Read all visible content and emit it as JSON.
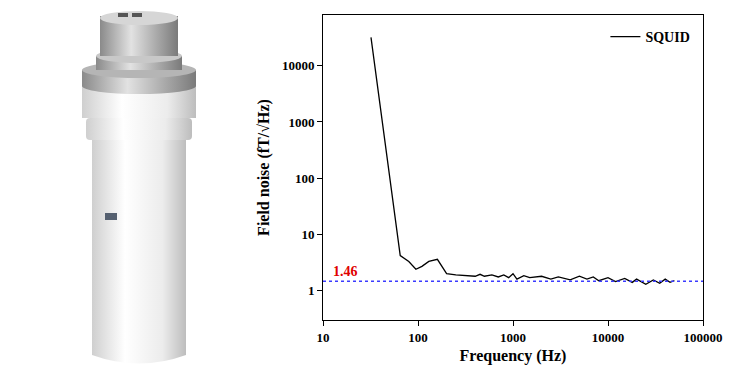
{
  "chart_data": {
    "type": "line",
    "xlabel": "Frequency (Hz)",
    "ylabel": "Field noise (fT/√Hz)",
    "log": true,
    "grid": false,
    "legend": "upper right",
    "x": [
      32,
      65,
      80,
      95,
      110,
      130,
      160,
      180,
      200,
      250,
      300,
      400,
      450,
      500,
      600,
      700,
      800,
      900,
      1000,
      1100,
      1300,
      1500,
      2000,
      2500,
      3000,
      4000,
      5000,
      6000,
      7000,
      8000,
      10000,
      12000,
      15000,
      18000,
      20000,
      25000,
      30000,
      35000,
      40000,
      45000,
      50000
    ],
    "series": [
      {
        "name": "SQUID",
        "color": "#000000",
        "line_style": "solid",
        "values": [
          32000,
          4.2,
          3.3,
          2.4,
          2.7,
          3.3,
          3.6,
          2.6,
          2.0,
          1.9,
          1.85,
          1.8,
          1.95,
          1.8,
          1.9,
          1.75,
          1.9,
          1.7,
          2.0,
          1.6,
          1.85,
          1.7,
          1.8,
          1.6,
          1.75,
          1.55,
          1.8,
          1.6,
          1.75,
          1.5,
          1.7,
          1.45,
          1.65,
          1.4,
          1.6,
          1.3,
          1.55,
          1.35,
          1.6,
          1.4,
          1.5
        ]
      }
    ],
    "xlim": [
      10,
      100000
    ],
    "xticks": [
      10,
      100,
      1000,
      10000,
      100000
    ],
    "ylim": [
      0.3,
      80000
    ],
    "yticks": [
      1,
      10,
      100,
      1000,
      10000
    ],
    "reference_line": {
      "value": 1.46,
      "label": "1.46",
      "color": "#3b3bff",
      "label_color": "#e00000",
      "line_style": "dotted"
    }
  }
}
